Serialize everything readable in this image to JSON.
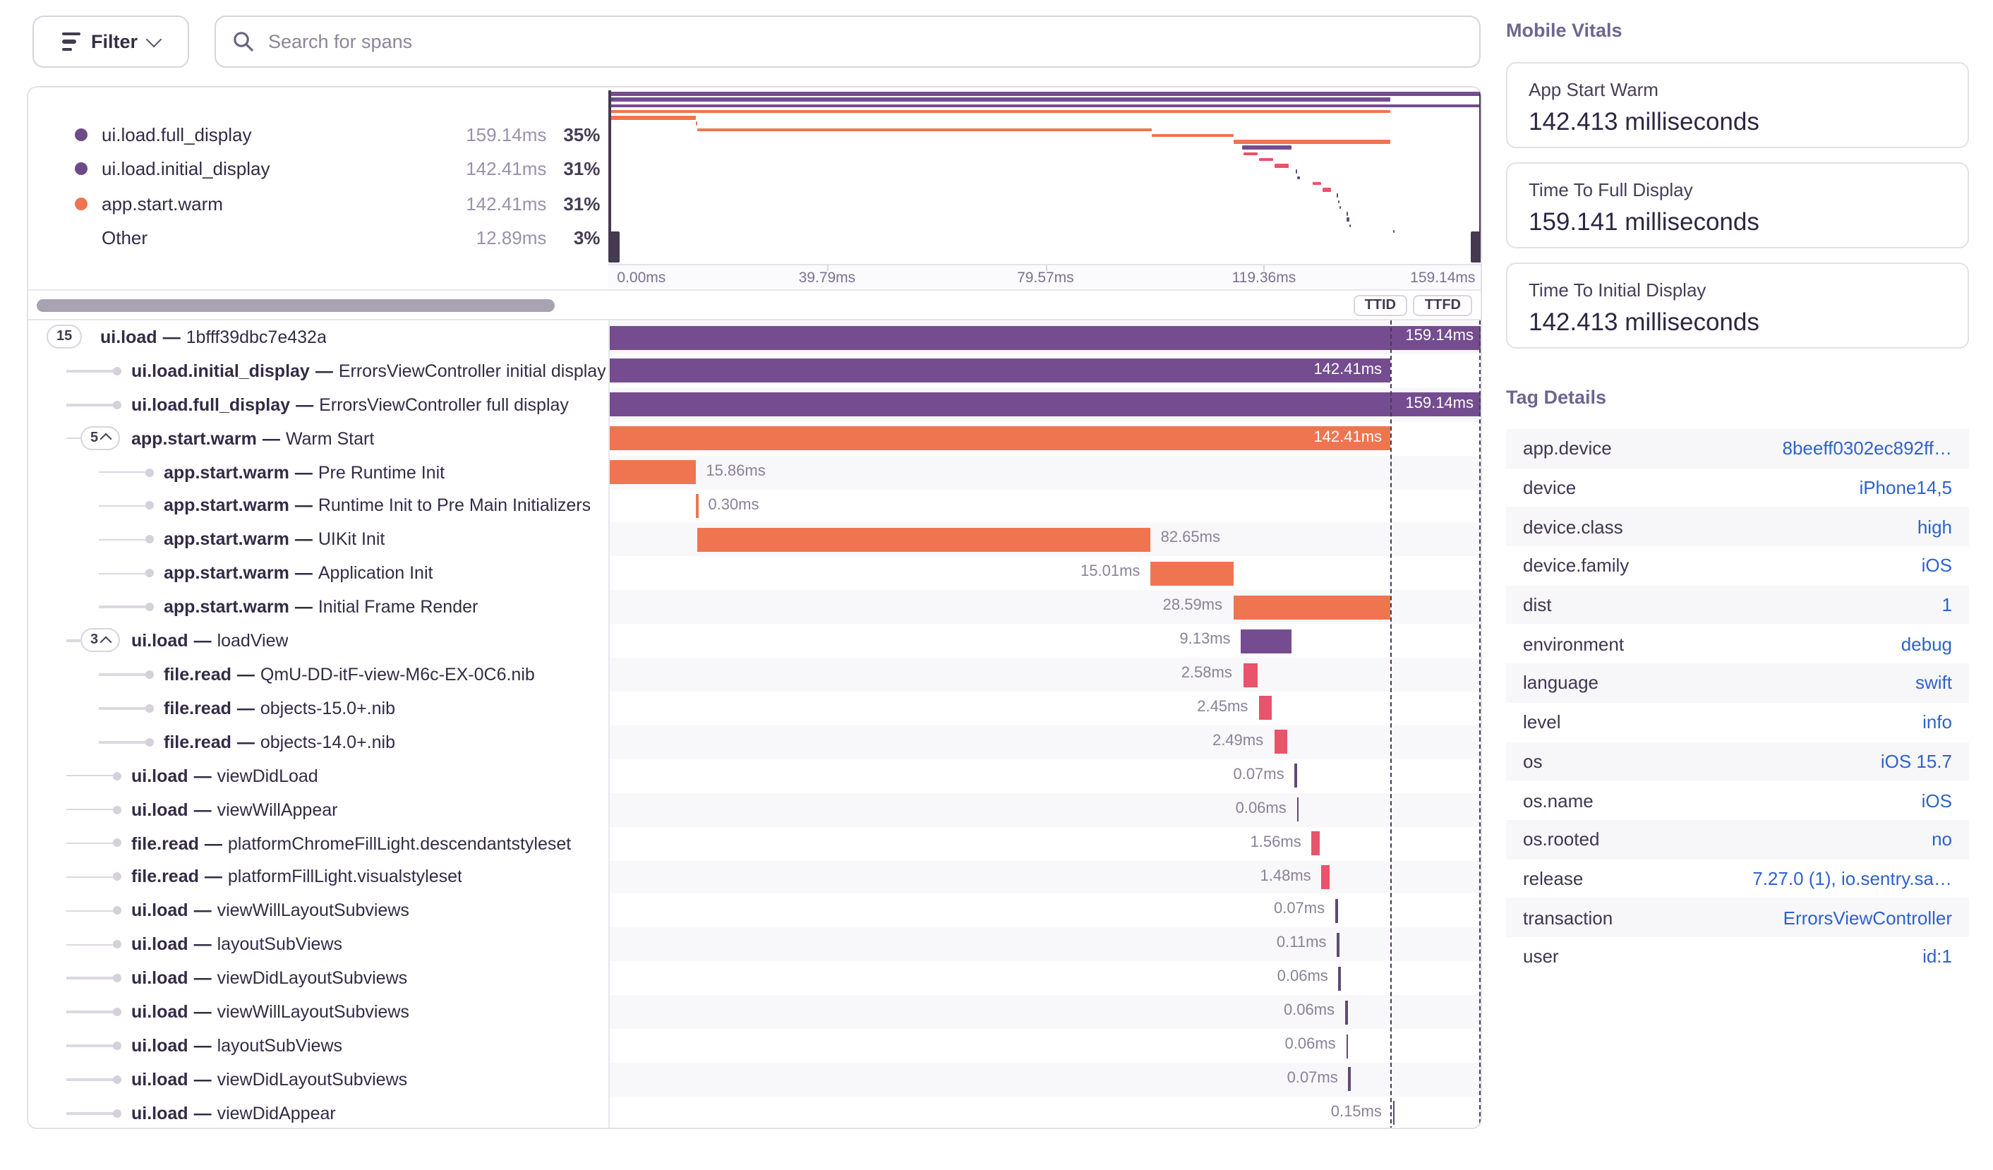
{
  "toolbar": {
    "filter_label": "Filter",
    "search_placeholder": "Search for spans"
  },
  "legend": {
    "items": [
      {
        "label": "ui.load.full_display",
        "duration": "159.14ms",
        "percent": "35%",
        "color": "#6e4a87"
      },
      {
        "label": "ui.load.initial_display",
        "duration": "142.41ms",
        "percent": "31%",
        "color": "#6e4a87"
      },
      {
        "label": "app.start.warm",
        "duration": "142.41ms",
        "percent": "31%",
        "color": "#ef7551"
      },
      {
        "label": "Other",
        "duration": "12.89ms",
        "percent": "3%",
        "color": ""
      }
    ]
  },
  "minimap": {
    "axis_ticks": [
      "0.00ms",
      "39.79ms",
      "79.57ms",
      "119.36ms",
      "159.14ms"
    ]
  },
  "controls": {
    "ttid": "TTID",
    "ttfd": "TTFD"
  },
  "colors": {
    "purple": "#744c8f",
    "orange": "#ef7551",
    "pink": "#e9536b",
    "tick": "#5f4a77",
    "link_blue": "#2e62cb"
  },
  "trace": {
    "total_ms": 159.14,
    "ttid_ms": 142.41,
    "ttfd_ms": 159.14,
    "spans": [
      {
        "op": "ui.load",
        "description": "1bfff39dbc7e432a",
        "depth": 0,
        "start_ms": 0,
        "duration_ms": 159.14,
        "duration_label": "159.14ms",
        "color": "purple",
        "label_pos": "inside",
        "count": "15",
        "chevron": false
      },
      {
        "op": "ui.load.initial_display",
        "description": "ErrorsViewController initial display",
        "depth": 1,
        "start_ms": 0,
        "duration_ms": 142.41,
        "duration_label": "142.41ms",
        "color": "purple",
        "label_pos": "inside"
      },
      {
        "op": "ui.load.full_display",
        "description": "ErrorsViewController full display",
        "depth": 1,
        "start_ms": 0,
        "duration_ms": 159.14,
        "duration_label": "159.14ms",
        "color": "purple",
        "label_pos": "inside"
      },
      {
        "op": "app.start.warm",
        "description": "Warm Start",
        "depth": 1,
        "start_ms": 0,
        "duration_ms": 142.41,
        "duration_label": "142.41ms",
        "color": "orange",
        "label_pos": "inside",
        "count": "5",
        "chevron": true
      },
      {
        "op": "app.start.warm",
        "description": "Pre Runtime Init",
        "depth": 2,
        "start_ms": 0,
        "duration_ms": 15.86,
        "duration_label": "15.86ms",
        "color": "orange",
        "label_pos": "right"
      },
      {
        "op": "app.start.warm",
        "description": "Runtime Init to Pre Main Initializers",
        "depth": 2,
        "start_ms": 15.86,
        "duration_ms": 0.3,
        "duration_label": "0.30ms",
        "color": "orange",
        "label_pos": "right"
      },
      {
        "op": "app.start.warm",
        "description": "UIKit Init",
        "depth": 2,
        "start_ms": 16.16,
        "duration_ms": 82.65,
        "duration_label": "82.65ms",
        "color": "orange",
        "label_pos": "right"
      },
      {
        "op": "app.start.warm",
        "description": "Application Init",
        "depth": 2,
        "start_ms": 98.81,
        "duration_ms": 15.01,
        "duration_label": "15.01ms",
        "color": "orange",
        "label_pos": "left"
      },
      {
        "op": "app.start.warm",
        "description": "Initial Frame Render",
        "depth": 2,
        "start_ms": 113.82,
        "duration_ms": 28.59,
        "duration_label": "28.59ms",
        "color": "orange",
        "label_pos": "left"
      },
      {
        "op": "ui.load",
        "description": "loadView",
        "depth": 1,
        "start_ms": 115.3,
        "duration_ms": 9.13,
        "duration_label": "9.13ms",
        "color": "purple",
        "label_pos": "left",
        "count": "3",
        "chevron": true
      },
      {
        "op": "file.read",
        "description": "QmU-DD-itF-view-M6c-EX-0C6.nib",
        "depth": 2,
        "start_ms": 115.6,
        "duration_ms": 2.58,
        "duration_label": "2.58ms",
        "color": "pink",
        "label_pos": "left"
      },
      {
        "op": "file.read",
        "description": "objects-15.0+.nib",
        "depth": 2,
        "start_ms": 118.5,
        "duration_ms": 2.45,
        "duration_label": "2.45ms",
        "color": "pink",
        "label_pos": "left"
      },
      {
        "op": "file.read",
        "description": "objects-14.0+.nib",
        "depth": 2,
        "start_ms": 121.3,
        "duration_ms": 2.49,
        "duration_label": "2.49ms",
        "color": "pink",
        "label_pos": "left"
      },
      {
        "op": "ui.load",
        "description": "viewDidLoad",
        "depth": 1,
        "start_ms": 125.1,
        "duration_ms": 0.07,
        "duration_label": "0.07ms",
        "color": "tick",
        "label_pos": "left"
      },
      {
        "op": "ui.load",
        "description": "viewWillAppear",
        "depth": 1,
        "start_ms": 125.5,
        "duration_ms": 0.06,
        "duration_label": "0.06ms",
        "color": "tick",
        "label_pos": "left"
      },
      {
        "op": "file.read",
        "description": "platformChromeFillLight.descendantstyleset",
        "depth": 1,
        "start_ms": 128.2,
        "duration_ms": 1.56,
        "duration_label": "1.56ms",
        "color": "pink",
        "label_pos": "left"
      },
      {
        "op": "file.read",
        "description": "platformFillLight.visualstyleset",
        "depth": 1,
        "start_ms": 130.0,
        "duration_ms": 1.48,
        "duration_label": "1.48ms",
        "color": "pink",
        "label_pos": "left"
      },
      {
        "op": "ui.load",
        "description": "viewWillLayoutSubviews",
        "depth": 1,
        "start_ms": 132.5,
        "duration_ms": 0.07,
        "duration_label": "0.07ms",
        "color": "tick",
        "label_pos": "left"
      },
      {
        "op": "ui.load",
        "description": "layoutSubViews",
        "depth": 1,
        "start_ms": 132.8,
        "duration_ms": 0.11,
        "duration_label": "0.11ms",
        "color": "tick",
        "label_pos": "left"
      },
      {
        "op": "ui.load",
        "description": "viewDidLayoutSubviews",
        "depth": 1,
        "start_ms": 133.1,
        "duration_ms": 0.06,
        "duration_label": "0.06ms",
        "color": "tick",
        "label_pos": "left"
      },
      {
        "op": "ui.load",
        "description": "viewWillLayoutSubviews",
        "depth": 1,
        "start_ms": 134.3,
        "duration_ms": 0.06,
        "duration_label": "0.06ms",
        "color": "tick",
        "label_pos": "left"
      },
      {
        "op": "ui.load",
        "description": "layoutSubViews",
        "depth": 1,
        "start_ms": 134.5,
        "duration_ms": 0.06,
        "duration_label": "0.06ms",
        "color": "tick",
        "label_pos": "left"
      },
      {
        "op": "ui.load",
        "description": "viewDidLayoutSubviews",
        "depth": 1,
        "start_ms": 134.9,
        "duration_ms": 0.07,
        "duration_label": "0.07ms",
        "color": "tick",
        "label_pos": "left"
      },
      {
        "op": "ui.load",
        "description": "viewDidAppear",
        "depth": 1,
        "start_ms": 142.9,
        "duration_ms": 0.15,
        "duration_label": "0.15ms",
        "color": "tick",
        "label_pos": "left"
      }
    ]
  },
  "vitals": {
    "title": "Mobile Vitals",
    "cards": [
      {
        "label": "App Start Warm",
        "value": "142.413 milliseconds"
      },
      {
        "label": "Time To Full Display",
        "value": "159.141 milliseconds"
      },
      {
        "label": "Time To Initial Display",
        "value": "142.413 milliseconds"
      }
    ]
  },
  "tags": {
    "title": "Tag Details",
    "rows": [
      {
        "key": "app.device",
        "value": "8beeff0302ec892ff…"
      },
      {
        "key": "device",
        "value": "iPhone14,5"
      },
      {
        "key": "device.class",
        "value": "high"
      },
      {
        "key": "device.family",
        "value": "iOS"
      },
      {
        "key": "dist",
        "value": "1"
      },
      {
        "key": "environment",
        "value": "debug"
      },
      {
        "key": "language",
        "value": "swift"
      },
      {
        "key": "level",
        "value": "info"
      },
      {
        "key": "os",
        "value": "iOS 15.7"
      },
      {
        "key": "os.name",
        "value": "iOS"
      },
      {
        "key": "os.rooted",
        "value": "no"
      },
      {
        "key": "release",
        "value": "7.27.0 (1), io.sentry.sa…"
      },
      {
        "key": "transaction",
        "value": "ErrorsViewController"
      },
      {
        "key": "user",
        "value": "id:1"
      }
    ]
  }
}
